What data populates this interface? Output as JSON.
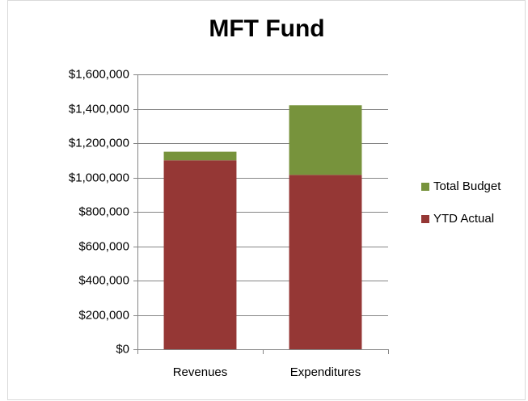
{
  "chart_data": {
    "type": "stacked_bar",
    "title": "MFT Fund",
    "categories": [
      "Revenues",
      "Expenditures"
    ],
    "series": [
      {
        "name": "YTD Actual",
        "color": "#953735",
        "values": [
          1100000,
          1015000
        ]
      },
      {
        "name": "Total Budget",
        "color": "#77933c",
        "values": [
          50000,
          405000
        ]
      }
    ],
    "ylim": [
      0,
      1600000
    ],
    "yticks": [
      {
        "value": 0,
        "label": "$0"
      },
      {
        "value": 200000,
        "label": "$200,000"
      },
      {
        "value": 400000,
        "label": "$400,000"
      },
      {
        "value": 600000,
        "label": "$600,000"
      },
      {
        "value": 800000,
        "label": "$800,000"
      },
      {
        "value": 1000000,
        "label": "$1,000,000"
      },
      {
        "value": 1200000,
        "label": "$1,200,000"
      },
      {
        "value": 1400000,
        "label": "$1,400,000"
      },
      {
        "value": 1600000,
        "label": "$1,600,000"
      }
    ],
    "grid": true,
    "legend": "right"
  }
}
